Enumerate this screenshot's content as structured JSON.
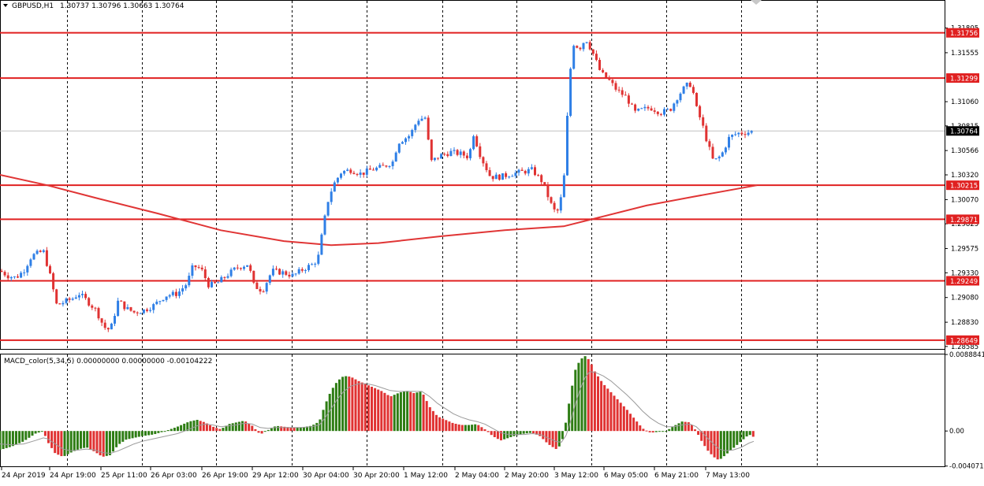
{
  "header": {
    "symbol_label": "GBPUSD,H1",
    "ohlc": "1.30737 1.30796 1.30663 1.30764"
  },
  "colors": {
    "bull": "#2f7fe6",
    "bear": "#e03232",
    "sr_line": "#e02020",
    "ma_line": "#e03535",
    "macd_up": "#2e7d14",
    "macd_down": "#e03232",
    "signal": "#9a9a9a",
    "grid": "#000000",
    "label_bg": "#e02020"
  },
  "chart_data": [
    {
      "type": "candlestick",
      "instrument": "GBPUSD",
      "timeframe": "H1",
      "ylim": [
        1.2856,
        1.3208
      ],
      "x_tick_labels": [
        "24 Apr 2019",
        "24 Apr 19:00",
        "25 Apr 11:00",
        "26 Apr 03:00",
        "26 Apr 19:00",
        "29 Apr 12:00",
        "30 Apr 04:00",
        "30 Apr 20:00",
        "1 May 12:00",
        "2 May 04:00",
        "2 May 20:00",
        "3 May 12:00",
        "6 May 05:00",
        "6 May 21:00",
        "7 May 13:00"
      ],
      "y_tick_labels": [
        "1.31805",
        "1.31555",
        "1.31060",
        "1.30815",
        "1.30566",
        "1.30320",
        "1.30070",
        "1.29825",
        "1.29575",
        "1.29330",
        "1.29080",
        "1.28830",
        "1.28585"
      ],
      "horizontal_levels": [
        "1.31756",
        "1.31299",
        "1.30215",
        "1.29871",
        "1.29249",
        "1.28649"
      ],
      "current_price": "1.30764",
      "price_path": [
        [
          0,
          1.2935
        ],
        [
          10,
          1.293
        ],
        [
          20,
          1.2928
        ],
        [
          30,
          1.2935
        ],
        [
          40,
          1.295
        ],
        [
          55,
          1.2955
        ],
        [
          63,
          1.2932
        ],
        [
          72,
          1.29
        ],
        [
          80,
          1.2903
        ],
        [
          92,
          1.2907
        ],
        [
          100,
          1.2912
        ],
        [
          110,
          1.2905
        ],
        [
          122,
          1.2895
        ],
        [
          132,
          1.2878
        ],
        [
          140,
          1.2875
        ],
        [
          150,
          1.2905
        ],
        [
          160,
          1.2897
        ],
        [
          170,
          1.2893
        ],
        [
          182,
          1.2895
        ],
        [
          195,
          1.29
        ],
        [
          210,
          1.291
        ],
        [
          225,
          1.2912
        ],
        [
          237,
          1.2922
        ],
        [
          245,
          1.294
        ],
        [
          255,
          1.2937
        ],
        [
          265,
          1.292
        ],
        [
          275,
          1.2922
        ],
        [
          287,
          1.293
        ],
        [
          300,
          1.2938
        ],
        [
          315,
          1.2942
        ],
        [
          322,
          1.292
        ],
        [
          333,
          1.2915
        ],
        [
          345,
          1.2935
        ],
        [
          360,
          1.2933
        ],
        [
          372,
          1.293
        ],
        [
          385,
          1.2937
        ],
        [
          398,
          1.2942
        ],
        [
          404,
          1.295
        ],
        [
          410,
          1.298
        ],
        [
          417,
          1.301
        ],
        [
          425,
          1.3025
        ],
        [
          433,
          1.3035
        ],
        [
          445,
          1.3037
        ],
        [
          458,
          1.3033
        ],
        [
          470,
          1.3037
        ],
        [
          485,
          1.304
        ],
        [
          498,
          1.3045
        ],
        [
          505,
          1.3065
        ],
        [
          520,
          1.3072
        ],
        [
          530,
          1.3088
        ],
        [
          540,
          1.309
        ],
        [
          546,
          1.3045
        ],
        [
          560,
          1.3052
        ],
        [
          572,
          1.3055
        ],
        [
          585,
          1.3053
        ],
        [
          595,
          1.305
        ],
        [
          600,
          1.3075
        ],
        [
          610,
          1.305
        ],
        [
          622,
          1.303
        ],
        [
          635,
          1.303
        ],
        [
          648,
          1.3033
        ],
        [
          662,
          1.3035
        ],
        [
          675,
          1.3037
        ],
        [
          688,
          1.3025
        ],
        [
          700,
          1.3
        ],
        [
          706,
          1.2992
        ],
        [
          712,
          1.301
        ],
        [
          717,
          1.304
        ],
        [
          721,
          1.312
        ],
        [
          727,
          1.3165
        ],
        [
          735,
          1.316
        ],
        [
          743,
          1.317
        ],
        [
          752,
          1.3155
        ],
        [
          762,
          1.3135
        ],
        [
          772,
          1.3128
        ],
        [
          782,
          1.3118
        ],
        [
          795,
          1.311
        ],
        [
          805,
          1.3095
        ],
        [
          815,
          1.3098
        ],
        [
          825,
          1.31
        ],
        [
          838,
          1.3095
        ],
        [
          850,
          1.3098
        ],
        [
          860,
          1.3112
        ],
        [
          870,
          1.3122
        ],
        [
          877,
          1.3124
        ],
        [
          883,
          1.31
        ],
        [
          890,
          1.3085
        ],
        [
          897,
          1.3065
        ],
        [
          905,
          1.3045
        ],
        [
          915,
          1.3052
        ],
        [
          925,
          1.307
        ],
        [
          935,
          1.3074
        ],
        [
          947,
          1.3075
        ],
        [
          957,
          1.3076
        ]
      ],
      "moving_average": [
        [
          0,
          1.3032
        ],
        [
          60,
          1.30215
        ],
        [
          120,
          1.3009
        ],
        [
          200,
          1.2993
        ],
        [
          280,
          1.2976
        ],
        [
          360,
          1.2965
        ],
        [
          420,
          1.2961
        ],
        [
          480,
          1.2963
        ],
        [
          560,
          1.297
        ],
        [
          640,
          1.2976
        ],
        [
          715,
          1.298
        ],
        [
          760,
          1.2989
        ],
        [
          820,
          1.3001
        ],
        [
          880,
          1.301
        ],
        [
          960,
          1.30215
        ]
      ]
    },
    {
      "type": "histogram",
      "title": "MACD_color(5,34,5) 0.00000000 0.00000000 -0.00104222",
      "ylim": [
        -0.0041,
        0.00889
      ],
      "y_tick_labels": [
        "0.0088841",
        "0.00",
        "-0.004071"
      ],
      "x": [
        0,
        15,
        30,
        45,
        55,
        60,
        70,
        80,
        90,
        100,
        110,
        120,
        130,
        140,
        150,
        160,
        170,
        180,
        195,
        210,
        225,
        240,
        250,
        260,
        270,
        280,
        290,
        300,
        310,
        320,
        330,
        340,
        350,
        360,
        370,
        380,
        395,
        405,
        412,
        420,
        428,
        436,
        445,
        455,
        465,
        475,
        485,
        495,
        505,
        515,
        525,
        535,
        545,
        555,
        565,
        575,
        585,
        595,
        605,
        615,
        625,
        635,
        645,
        655,
        665,
        675,
        685,
        695,
        705,
        712,
        718,
        724,
        730,
        736,
        742,
        748,
        755,
        765,
        775,
        785,
        795,
        805,
        815,
        825,
        835,
        845,
        855,
        865,
        875,
        883,
        890,
        897,
        905,
        912,
        920,
        930,
        940,
        950,
        956
      ],
      "values": [
        -0.0022,
        -0.0018,
        -0.0012,
        -0.0003,
        0.0,
        -0.0012,
        -0.0026,
        -0.003,
        -0.0025,
        -0.0021,
        -0.0019,
        -0.0024,
        -0.003,
        -0.0028,
        -0.0016,
        -0.001,
        -0.0008,
        -0.0006,
        -0.0004,
        0.0,
        0.0005,
        0.0011,
        0.0013,
        0.001,
        0.0005,
        0.0002,
        0.0008,
        0.001,
        0.0012,
        0.0006,
        -0.0004,
        0.0001,
        0.0006,
        0.0005,
        0.0004,
        0.0004,
        0.0006,
        0.0011,
        0.003,
        0.0047,
        0.0058,
        0.0064,
        0.0063,
        0.0058,
        0.0054,
        0.005,
        0.0046,
        0.004,
        0.0044,
        0.0047,
        0.0044,
        0.0046,
        0.0028,
        0.0017,
        0.0013,
        0.0009,
        0.0007,
        0.0007,
        0.0008,
        0.0002,
        -0.0006,
        -0.0011,
        -0.0008,
        -0.0005,
        -0.0003,
        -0.0002,
        -0.0006,
        -0.0015,
        -0.0021,
        -0.0016,
        0.0012,
        0.0045,
        0.0072,
        0.0083,
        0.0087,
        0.0082,
        0.0068,
        0.0055,
        0.0045,
        0.0035,
        0.0025,
        0.0014,
        0.0003,
        -0.0002,
        -0.0001,
        0.0,
        0.0006,
        0.0011,
        0.001,
        0.0,
        -0.0012,
        -0.0022,
        -0.003,
        -0.0034,
        -0.0028,
        -0.002,
        -0.0012,
        -0.0004,
        -0.0007
      ],
      "signal_values": [
        -0.0015,
        -0.0016,
        -0.0015,
        -0.0011,
        -0.0008,
        -0.0009,
        -0.0015,
        -0.0021,
        -0.0023,
        -0.0022,
        -0.0021,
        -0.0022,
        -0.0025,
        -0.0026,
        -0.0023,
        -0.0019,
        -0.0015,
        -0.0012,
        -0.0009,
        -0.0006,
        -0.0003,
        0.0002,
        0.0006,
        0.0008,
        0.0007,
        0.0005,
        0.0006,
        0.0007,
        0.0009,
        0.0008,
        0.0004,
        0.0003,
        0.0004,
        0.0004,
        0.0004,
        0.0004,
        0.0005,
        0.0007,
        0.0015,
        0.0026,
        0.0037,
        0.0046,
        0.0052,
        0.0055,
        0.0055,
        0.0053,
        0.005,
        0.0047,
        0.0046,
        0.0046,
        0.0046,
        0.0046,
        0.004,
        0.0032,
        0.0026,
        0.002,
        0.0016,
        0.0013,
        0.0011,
        0.0008,
        0.0003,
        -0.0002,
        -0.0004,
        -0.0004,
        -0.0004,
        -0.0003,
        -0.0004,
        -0.0008,
        -0.0012,
        -0.0013,
        -0.0005,
        0.0012,
        0.0032,
        0.0049,
        0.0062,
        0.0069,
        0.0068,
        0.0064,
        0.0058,
        0.005,
        0.0042,
        0.0033,
        0.0023,
        0.0015,
        0.0009,
        0.0005,
        0.0005,
        0.0007,
        0.0008,
        0.0005,
        -0.0001,
        -0.0008,
        -0.0015,
        -0.0021,
        -0.0023,
        -0.0022,
        -0.0019,
        -0.0014,
        -0.0012
      ]
    }
  ]
}
